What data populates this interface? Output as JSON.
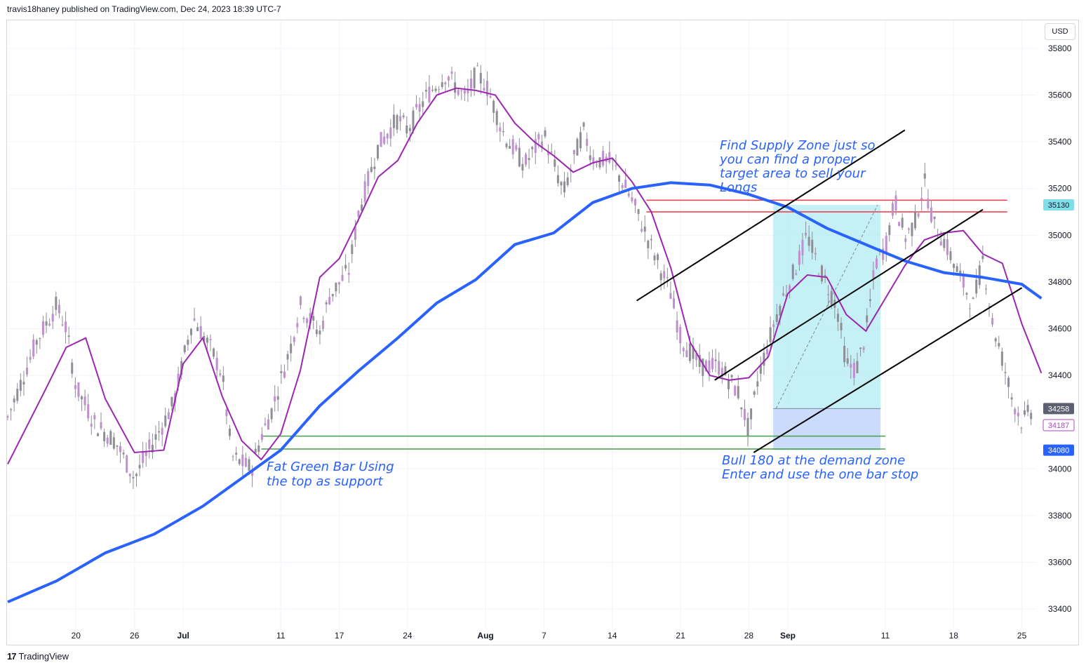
{
  "header": {
    "text": "travis18haney published on TradingView.com, Dec 24, 2023 18:39 UTC-7"
  },
  "currency": "USD",
  "footer": {
    "logo": "17",
    "brand": "TradingView"
  },
  "chart_data": {
    "type": "candlestick",
    "yticks": [
      35800,
      35600,
      35400,
      35200,
      35000,
      34800,
      34600,
      34400,
      34000,
      33800,
      33600,
      33400
    ],
    "xticks": [
      {
        "label": "20",
        "day": 7
      },
      {
        "label": "26",
        "day": 13
      },
      {
        "label": "Jul",
        "day": 18
      },
      {
        "label": "11",
        "day": 28
      },
      {
        "label": "17",
        "day": 34
      },
      {
        "label": "24",
        "day": 41
      },
      {
        "label": "Aug",
        "day": 49
      },
      {
        "label": "7",
        "day": 55
      },
      {
        "label": "14",
        "day": 62
      },
      {
        "label": "21",
        "day": 69
      },
      {
        "label": "28",
        "day": 76
      },
      {
        "label": "Sep",
        "day": 80
      },
      {
        "label": "11",
        "day": 90
      },
      {
        "label": "18",
        "day": 97
      },
      {
        "label": "25",
        "day": 104
      }
    ],
    "ylim": [
      33250,
      35920
    ],
    "price_tags": [
      {
        "value": "35130",
        "price": 35130,
        "bg": "#80deea",
        "fg": "#131722",
        "border": ""
      },
      {
        "value": "34258",
        "price": 34258,
        "bg": "#5d6070",
        "fg": "#ffffff",
        "border": ""
      },
      {
        "value": "34187",
        "price": 34187,
        "bg": "#ffffff",
        "fg": "#ab47bc",
        "border": "#ab47bc"
      },
      {
        "value": "34080",
        "price": 34080,
        "bg": "#2962ff",
        "fg": "#ffffff",
        "border": ""
      }
    ],
    "colors": {
      "candles": "#c08fd0",
      "wicks": "#8e8e96",
      "ma_slow": "#2962ff",
      "ma_fast": "#9c27b0",
      "supply": "#f23645",
      "demand": "#43a047",
      "channel": "#000000",
      "profit_zone": "#b2ebf2",
      "risk_zone": "#c5d7fb"
    },
    "annotations": [
      {
        "lines": [
          "Find Supply Zone just so",
          "you can find a proper",
          "target area to sell your",
          "Longs"
        ]
      },
      {
        "lines": [
          "Fat Green Bar Using",
          "the top as support"
        ]
      },
      {
        "lines": [
          "Bull 180 at the demand zone",
          "Enter and use the one bar stop"
        ]
      }
    ],
    "supply_lines": [
      35150,
      35100
    ],
    "demand_lines": [
      34140,
      34085
    ],
    "channel_lines": [
      {
        "from": [
          64.5,
          34720
        ],
        "to": [
          92,
          35450
        ]
      },
      {
        "from": [
          72.5,
          34380
        ],
        "to": [
          100,
          35110
        ]
      },
      {
        "from": [
          76.5,
          34070
        ],
        "to": [
          104,
          34775
        ]
      }
    ],
    "position": {
      "entry": 34258,
      "target": 35130,
      "stop": 34080,
      "start_day": 78.5,
      "end_day": 89.5
    },
    "ma_slow_points": [
      [
        0,
        33430
      ],
      [
        5,
        33520
      ],
      [
        10,
        33640
      ],
      [
        15,
        33720
      ],
      [
        20,
        33840
      ],
      [
        25,
        33990
      ],
      [
        28,
        34080
      ],
      [
        32,
        34270
      ],
      [
        36,
        34420
      ],
      [
        40,
        34560
      ],
      [
        44,
        34710
      ],
      [
        48,
        34810
      ],
      [
        52,
        34960
      ],
      [
        56,
        35010
      ],
      [
        60,
        35140
      ],
      [
        64,
        35200
      ],
      [
        68,
        35225
      ],
      [
        72,
        35215
      ],
      [
        76,
        35175
      ],
      [
        80,
        35120
      ],
      [
        84,
        35030
      ],
      [
        88,
        34960
      ],
      [
        92,
        34890
      ],
      [
        96,
        34840
      ],
      [
        100,
        34820
      ],
      [
        104,
        34790
      ],
      [
        106,
        34730
      ]
    ],
    "ma_fast_points": [
      [
        0,
        34020
      ],
      [
        4,
        34350
      ],
      [
        6,
        34520
      ],
      [
        8,
        34560
      ],
      [
        10,
        34300
      ],
      [
        13,
        34070
      ],
      [
        16,
        34080
      ],
      [
        18,
        34450
      ],
      [
        20,
        34560
      ],
      [
        22,
        34310
      ],
      [
        24,
        34120
      ],
      [
        26,
        34040
      ],
      [
        28,
        34150
      ],
      [
        30,
        34420
      ],
      [
        32,
        34820
      ],
      [
        34,
        34900
      ],
      [
        36,
        35070
      ],
      [
        38,
        35250
      ],
      [
        40,
        35320
      ],
      [
        42,
        35480
      ],
      [
        44,
        35600
      ],
      [
        46,
        35630
      ],
      [
        48,
        35620
      ],
      [
        50,
        35600
      ],
      [
        52,
        35480
      ],
      [
        54,
        35400
      ],
      [
        56,
        35340
      ],
      [
        58,
        35270
      ],
      [
        60,
        35310
      ],
      [
        62,
        35330
      ],
      [
        64,
        35230
      ],
      [
        66,
        35100
      ],
      [
        68,
        34860
      ],
      [
        70,
        34540
      ],
      [
        72,
        34400
      ],
      [
        74,
        34380
      ],
      [
        76,
        34390
      ],
      [
        78,
        34480
      ],
      [
        80,
        34750
      ],
      [
        82,
        34830
      ],
      [
        84,
        34820
      ],
      [
        86,
        34660
      ],
      [
        88,
        34590
      ],
      [
        90,
        34730
      ],
      [
        92,
        34870
      ],
      [
        94,
        34980
      ],
      [
        96,
        35010
      ],
      [
        98,
        35020
      ],
      [
        100,
        34920
      ],
      [
        102,
        34880
      ],
      [
        104,
        34620
      ],
      [
        106,
        34410
      ]
    ],
    "candle_path_points": [
      [
        0,
        34220
      ],
      [
        3,
        34550
      ],
      [
        5,
        34700
      ],
      [
        6,
        34600
      ],
      [
        7,
        34350
      ],
      [
        9,
        34190
      ],
      [
        11,
        34120
      ],
      [
        13,
        33960
      ],
      [
        15,
        34120
      ],
      [
        17,
        34280
      ],
      [
        19,
        34650
      ],
      [
        21,
        34500
      ],
      [
        22,
        34400
      ],
      [
        23,
        34050
      ],
      [
        25,
        34000
      ],
      [
        26,
        34140
      ],
      [
        27,
        34240
      ],
      [
        29,
        34520
      ],
      [
        30,
        34700
      ],
      [
        32,
        34580
      ],
      [
        33,
        34740
      ],
      [
        35,
        34850
      ],
      [
        36,
        35100
      ],
      [
        37,
        35240
      ],
      [
        38,
        35380
      ],
      [
        40,
        35500
      ],
      [
        41,
        35450
      ],
      [
        43,
        35600
      ],
      [
        45,
        35690
      ],
      [
        47,
        35580
      ],
      [
        48,
        35690
      ],
      [
        49,
        35650
      ],
      [
        51,
        35420
      ],
      [
        53,
        35300
      ],
      [
        55,
        35430
      ],
      [
        57,
        35180
      ],
      [
        59,
        35450
      ],
      [
        60,
        35330
      ],
      [
        62,
        35310
      ],
      [
        64,
        35150
      ],
      [
        66,
        34950
      ],
      [
        68,
        34750
      ],
      [
        69,
        34560
      ],
      [
        71,
        34440
      ],
      [
        73,
        34440
      ],
      [
        75,
        34320
      ],
      [
        76,
        34160
      ],
      [
        77,
        34400
      ],
      [
        79,
        34680
      ],
      [
        81,
        34880
      ],
      [
        82,
        35000
      ],
      [
        83,
        34880
      ],
      [
        85,
        34700
      ],
      [
        86,
        34450
      ],
      [
        87,
        34420
      ],
      [
        88,
        34580
      ],
      [
        89,
        34880
      ],
      [
        90,
        34950
      ],
      [
        91,
        35150
      ],
      [
        92,
        34990
      ],
      [
        93,
        35050
      ],
      [
        94,
        35230
      ],
      [
        95,
        35040
      ],
      [
        96,
        34980
      ],
      [
        97,
        34880
      ],
      [
        98,
        34790
      ],
      [
        99,
        34700
      ],
      [
        100,
        34900
      ],
      [
        101,
        34620
      ],
      [
        102,
        34470
      ],
      [
        103,
        34300
      ],
      [
        104,
        34200
      ],
      [
        105,
        34250
      ]
    ]
  }
}
